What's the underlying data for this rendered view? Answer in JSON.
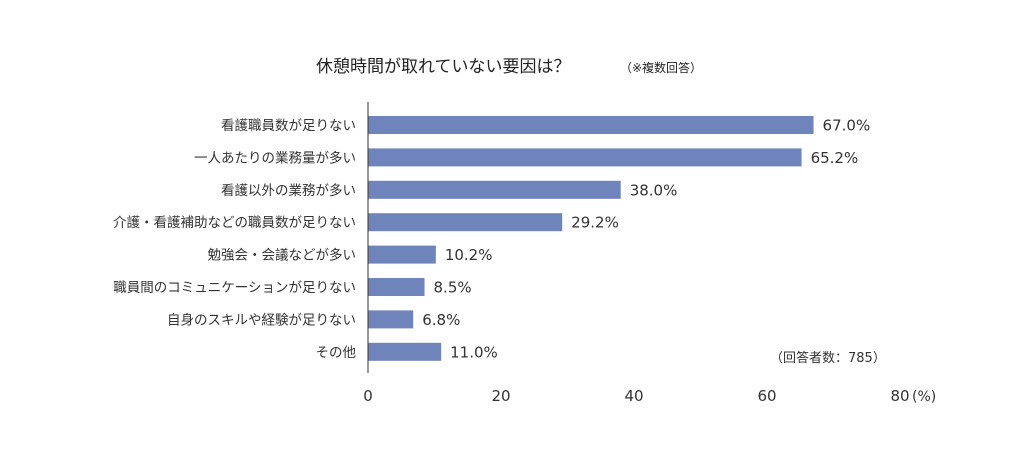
{
  "chart_data": {
    "type": "bar",
    "orientation": "horizontal",
    "title": "休憩時間が取れていない要因は？",
    "subtitle": "（※複数回答）",
    "categories": [
      "看護職員数が足りない",
      "一人あたりの業務量が多い",
      "看護以外の業務が多い",
      "介護・看護補助などの職員数が足りない",
      "勉強会・会議などが多い",
      "職員間のコミュニケーションが足りない",
      "自身のスキルや経験が足りない",
      "その他"
    ],
    "values": [
      67.0,
      65.2,
      38.0,
      29.2,
      10.2,
      8.5,
      6.8,
      11.0
    ],
    "value_labels": [
      "67.0%",
      "65.2%",
      "38.0%",
      "29.2%",
      "10.2%",
      "8.5%",
      "6.8%",
      "11.0%"
    ],
    "xlim": [
      0,
      80
    ],
    "x_ticks": [
      0,
      20,
      40,
      60,
      80
    ],
    "x_tick_labels": [
      "0",
      "20",
      "40",
      "60",
      "80"
    ],
    "x_unit": "(%)",
    "note": "（回答者数：785）",
    "bar_color": "#6f84bb",
    "grid": false,
    "legend": "none"
  }
}
